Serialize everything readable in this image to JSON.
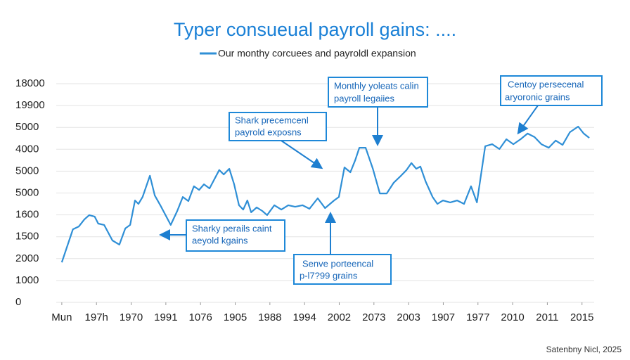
{
  "chart_data": {
    "type": "line",
    "title": "Typer consueual payroll gains: ....",
    "xticks": [
      {
        "value": 0,
        "label": "Mun"
      },
      {
        "value": 1,
        "label": "197h"
      },
      {
        "value": 2,
        "label": "1970"
      },
      {
        "value": 3,
        "label": "1991"
      },
      {
        "value": 4,
        "label": "1076"
      },
      {
        "value": 5,
        "label": "1905"
      },
      {
        "value": 6,
        "label": "1988"
      },
      {
        "value": 7,
        "label": "1994"
      },
      {
        "value": 8,
        "label": "2002"
      },
      {
        "value": 9,
        "label": "2073"
      },
      {
        "value": 10,
        "label": "2003"
      },
      {
        "value": 11,
        "label": "1907"
      },
      {
        "value": 12,
        "label": "1977"
      },
      {
        "value": 13,
        "label": "2010"
      },
      {
        "value": 14,
        "label": "2011"
      },
      {
        "value": 15,
        "label": "2015"
      }
    ],
    "yticks": [
      {
        "value": 0,
        "label": "0"
      },
      {
        "value": 1,
        "label": "1000"
      },
      {
        "value": 2,
        "label": "2000"
      },
      {
        "value": 3,
        "label": "1500"
      },
      {
        "value": 4,
        "label": "1600"
      },
      {
        "value": 5,
        "label": "5000"
      },
      {
        "value": 6,
        "label": "5000"
      },
      {
        "value": 7,
        "label": "4000"
      },
      {
        "value": 8,
        "label": "5000"
      },
      {
        "value": 9,
        "label": "19900"
      },
      {
        "value": 10,
        "label": "18000"
      }
    ],
    "xlim": [
      -0.16,
      15.35
    ],
    "ylim": [
      0,
      10
    ],
    "grid": true,
    "series": [
      {
        "name": "Our monthy corcuees and payroldl expansion",
        "color": "#2f8fd6",
        "x": [
          0,
          0.32,
          0.49,
          0.65,
          0.79,
          0.95,
          1.05,
          1.22,
          1.46,
          1.66,
          1.83,
          1.97,
          2.11,
          2.21,
          2.33,
          2.54,
          2.68,
          2.84,
          3.14,
          3.33,
          3.49,
          3.65,
          3.81,
          3.96,
          4.1,
          4.26,
          4.4,
          4.54,
          4.67,
          4.83,
          4.97,
          5.11,
          5.23,
          5.35,
          5.46,
          5.62,
          5.78,
          5.92,
          6.13,
          6.33,
          6.53,
          6.73,
          6.94,
          7.14,
          7.38,
          7.59,
          7.85,
          7.99,
          8.15,
          8.32,
          8.46,
          8.58,
          8.76,
          8.97,
          9.17,
          9.37,
          9.57,
          9.78,
          9.94,
          10.08,
          10.22,
          10.34,
          10.49,
          10.69,
          10.83,
          10.99,
          11.2,
          11.4,
          11.6,
          11.8,
          11.97,
          12.21,
          12.41,
          12.62,
          12.82,
          13.02,
          13.23,
          13.43,
          13.63,
          13.83,
          14.04,
          14.24,
          14.44,
          14.65,
          14.89,
          15.05,
          15.21
        ],
        "values": [
          1.83,
          3.34,
          3.47,
          3.79,
          3.99,
          3.92,
          3.6,
          3.54,
          2.83,
          2.64,
          3.38,
          3.54,
          4.66,
          4.5,
          4.82,
          5.79,
          4.89,
          4.44,
          3.54,
          4.18,
          4.82,
          4.63,
          5.31,
          5.14,
          5.4,
          5.21,
          5.63,
          6.05,
          5.85,
          6.11,
          5.4,
          4.44,
          4.24,
          4.66,
          4.12,
          4.34,
          4.18,
          3.99,
          4.44,
          4.24,
          4.44,
          4.37,
          4.44,
          4.28,
          4.76,
          4.31,
          4.66,
          4.82,
          6.17,
          5.95,
          6.5,
          7.07,
          7.07,
          6.11,
          4.98,
          4.98,
          5.47,
          5.79,
          6.05,
          6.37,
          6.11,
          6.21,
          5.53,
          4.82,
          4.5,
          4.66,
          4.57,
          4.66,
          4.5,
          5.31,
          4.57,
          7.14,
          7.23,
          7.01,
          7.46,
          7.23,
          7.46,
          7.72,
          7.56,
          7.23,
          7.07,
          7.4,
          7.2,
          7.78,
          8.04,
          7.72,
          7.52
        ]
      }
    ],
    "annotations": [
      {
        "lines": [
          "Shark precemcenl",
          "payrold exposns"
        ]
      },
      {
        "lines": [
          "Monthly yoleats calin",
          "payroll legaiies"
        ]
      },
      {
        "lines": [
          "Centoy persecenal",
          "aryoronic grains"
        ]
      },
      {
        "lines": [
          "Sharky perails caint",
          "aeyold kgains"
        ]
      },
      {
        "lines": [
          "Senve porteencal",
          "p-l7?99 grains"
        ]
      }
    ],
    "source": "Satenbny Nicl, 2025"
  }
}
